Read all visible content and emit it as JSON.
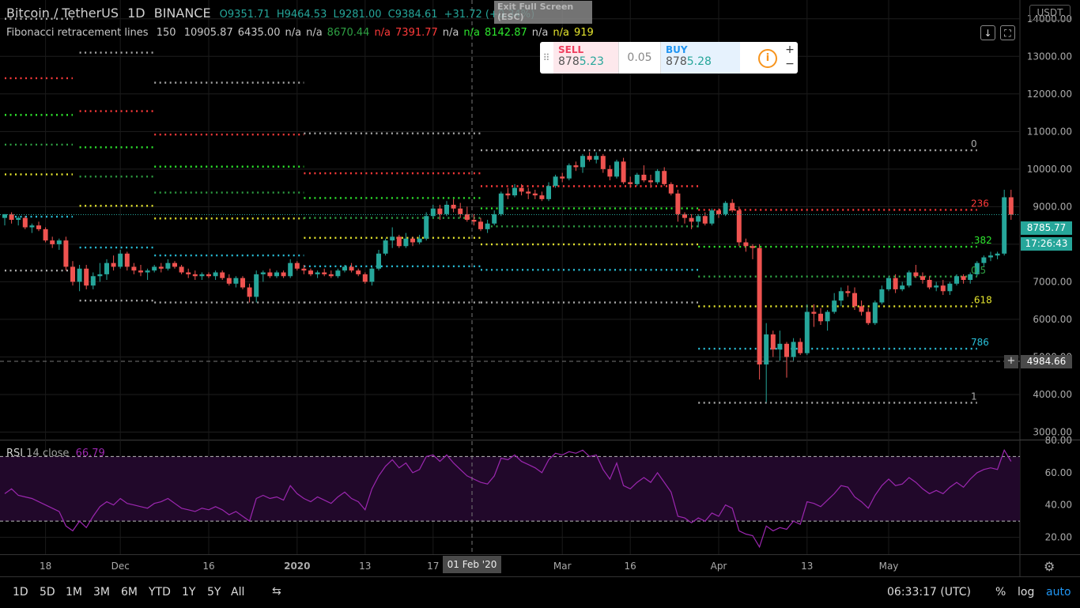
{
  "header": {
    "symbol": "Bitcoin / TetherUS",
    "interval": "1D",
    "exchange": "BINANCE",
    "open": "O9351.71",
    "high": "H9464.53",
    "low": "L9281.00",
    "close": "C9384.61",
    "change": "+31.72 (+0.34%)"
  },
  "exit_fullscreen": {
    "line1": "Exit Full Screen",
    "line2": "(ESC)"
  },
  "fib_legend": {
    "name": "Fibonacci retracement lines",
    "length": "150",
    "values": [
      {
        "text": "10905.87",
        "color": "#c8c8c8"
      },
      {
        "text": "6435.00",
        "color": "#c8c8c8"
      },
      {
        "text": "n/a",
        "color": "#c8c8c8"
      },
      {
        "text": "n/a",
        "color": "#c8c8c8"
      },
      {
        "text": "8670.44",
        "color": "#2ea043"
      },
      {
        "text": "n/a",
        "color": "#ff3a3a"
      },
      {
        "text": "7391.77",
        "color": "#ff3a3a"
      },
      {
        "text": "n/a",
        "color": "#c8c8c8"
      },
      {
        "text": "n/a",
        "color": "#2ee62e"
      },
      {
        "text": "8142.87",
        "color": "#2ee62e"
      },
      {
        "text": "n/a",
        "color": "#c8c8c8"
      },
      {
        "text": "n/a",
        "color": "#e6e62e"
      },
      {
        "text": "919",
        "color": "#e6e62e"
      }
    ]
  },
  "trade_panel": {
    "sell_label": "SELL",
    "sell_price_a": "878",
    "sell_price_b": "5.23",
    "quantity": "0.05",
    "buy_label": "BUY",
    "buy_price_a": "878",
    "buy_price_b": "5.28",
    "info_icon": "i",
    "plus": "+",
    "minus": "−"
  },
  "currency_badge": "USDT",
  "price_axis": {
    "ticks": [
      "14000.00",
      "13000.00",
      "12000.00",
      "11000.00",
      "10000.00",
      "9000.00",
      "8000.00",
      "7000.00",
      "6000.00",
      "5000.00",
      "4000.00",
      "3000.00"
    ],
    "last_price": "8785.77",
    "countdown": "17:26:43",
    "crosshair_price": "4984.66"
  },
  "rsi": {
    "label": "RSI",
    "params": "14 close",
    "value": "66.79",
    "ticks": [
      "80.00",
      "60.00",
      "40.00",
      "20.00"
    ]
  },
  "time_axis": {
    "labels": [
      "18",
      "Dec",
      "16",
      "2020",
      "13",
      "17",
      "Mar",
      "16",
      "Apr",
      "13",
      "May"
    ],
    "crosshair_date": "01 Feb '20"
  },
  "fib_levels": {
    "labels": [
      "0",
      "236",
      ".382",
      "0.5",
      ".618",
      "786",
      "1"
    ],
    "colors": [
      "#aaaaaa",
      "#ff3a3a",
      "#2ee62e",
      "#2ea043",
      "#e6e62e",
      "#29c0d9",
      "#aaaaaa"
    ]
  },
  "bottom_bar": {
    "timeframes": [
      "1D",
      "5D",
      "1M",
      "3M",
      "6M",
      "YTD",
      "1Y",
      "5Y",
      "All"
    ],
    "clock": "06:33:17 (UTC)",
    "percent": "%",
    "log": "log",
    "auto": "auto"
  },
  "colors": {
    "up": "#26a69a",
    "down": "#ef5350",
    "rsi_line": "#9c27b0",
    "rsi_band": "#21082a"
  },
  "chart_data": {
    "type": "candlestick",
    "title": "Bitcoin / TetherUS 1D BINANCE",
    "y_range": [
      2800,
      14500
    ],
    "rsi_range": [
      10,
      80
    ],
    "rsi_bands": [
      30,
      70
    ],
    "candles": [
      [
        8700,
        8800,
        8500,
        8800
      ],
      [
        8800,
        8850,
        8550,
        8650
      ],
      [
        8650,
        8750,
        8500,
        8700
      ],
      [
        8700,
        8750,
        8400,
        8450
      ],
      [
        8450,
        8550,
        8300,
        8500
      ],
      [
        8500,
        8600,
        8350,
        8400
      ],
      [
        8400,
        8450,
        8050,
        8100
      ],
      [
        8100,
        8200,
        7900,
        8000
      ],
      [
        8000,
        8150,
        7850,
        8100
      ],
      [
        8100,
        8200,
        7300,
        7400
      ],
      [
        7400,
        7550,
        6900,
        7000
      ],
      [
        7000,
        7450,
        6750,
        7350
      ],
      [
        7350,
        7450,
        6800,
        6900
      ],
      [
        6900,
        7250,
        6800,
        7150
      ],
      [
        7150,
        7500,
        7000,
        7200
      ],
      [
        7200,
        7600,
        7050,
        7500
      ],
      [
        7500,
        7700,
        7300,
        7400
      ],
      [
        7400,
        7850,
        7350,
        7750
      ],
      [
        7750,
        7800,
        7300,
        7400
      ],
      [
        7400,
        7500,
        7200,
        7300
      ],
      [
        7300,
        7450,
        7150,
        7250
      ],
      [
        7250,
        7350,
        7050,
        7300
      ],
      [
        7300,
        7450,
        7250,
        7400
      ],
      [
        7400,
        7500,
        7250,
        7350
      ],
      [
        7350,
        7600,
        7300,
        7500
      ],
      [
        7500,
        7550,
        7350,
        7400
      ],
      [
        7400,
        7450,
        7200,
        7250
      ],
      [
        7250,
        7350,
        7100,
        7200
      ],
      [
        7200,
        7300,
        7050,
        7150
      ],
      [
        7150,
        7250,
        7050,
        7200
      ],
      [
        7200,
        7250,
        7100,
        7150
      ],
      [
        7150,
        7300,
        7050,
        7250
      ],
      [
        7250,
        7300,
        7050,
        7100
      ],
      [
        7100,
        7200,
        6900,
        6950
      ],
      [
        6950,
        7150,
        6850,
        7100
      ],
      [
        7100,
        7150,
        6800,
        6850
      ],
      [
        6850,
        6950,
        6450,
        6600
      ],
      [
        6600,
        7300,
        6450,
        7200
      ],
      [
        7200,
        7300,
        7000,
        7250
      ],
      [
        7250,
        7350,
        7100,
        7150
      ],
      [
        7150,
        7300,
        7100,
        7250
      ],
      [
        7250,
        7300,
        7100,
        7150
      ],
      [
        7150,
        7600,
        7100,
        7500
      ],
      [
        7500,
        7550,
        7300,
        7350
      ],
      [
        7350,
        7450,
        7200,
        7300
      ],
      [
        7300,
        7350,
        7150,
        7200
      ],
      [
        7200,
        7300,
        7100,
        7250
      ],
      [
        7250,
        7350,
        7150,
        7200
      ],
      [
        7200,
        7300,
        7100,
        7150
      ],
      [
        7150,
        7350,
        7100,
        7300
      ],
      [
        7300,
        7450,
        7250,
        7400
      ],
      [
        7400,
        7500,
        7250,
        7300
      ],
      [
        7300,
        7350,
        7150,
        7200
      ],
      [
        7200,
        7250,
        6950,
        7000
      ],
      [
        7000,
        7400,
        6900,
        7350
      ],
      [
        7350,
        7850,
        7300,
        7750
      ],
      [
        7750,
        8150,
        7700,
        8100
      ],
      [
        8100,
        8450,
        7900,
        8200
      ],
      [
        8200,
        8250,
        7900,
        7950
      ],
      [
        7950,
        8300,
        7900,
        8150
      ],
      [
        8150,
        8200,
        7950,
        8050
      ],
      [
        8050,
        8250,
        8000,
        8150
      ],
      [
        8150,
        8850,
        8100,
        8750
      ],
      [
        8750,
        9050,
        8700,
        8950
      ],
      [
        8950,
        9050,
        8650,
        8800
      ],
      [
        8800,
        9150,
        8750,
        9050
      ],
      [
        9050,
        9200,
        8850,
        8950
      ],
      [
        8950,
        9100,
        8700,
        8800
      ],
      [
        8800,
        9000,
        8600,
        8650
      ],
      [
        8650,
        8800,
        8500,
        8600
      ],
      [
        8600,
        8700,
        8350,
        8400
      ],
      [
        8400,
        8650,
        8300,
        8550
      ],
      [
        8550,
        8900,
        8500,
        8800
      ],
      [
        8800,
        9400,
        8750,
        9350
      ],
      [
        9350,
        9500,
        9200,
        9300
      ],
      [
        9300,
        9600,
        9250,
        9500
      ],
      [
        9500,
        9600,
        9300,
        9400
      ],
      [
        9400,
        9500,
        9200,
        9350
      ],
      [
        9350,
        9450,
        9200,
        9300
      ],
      [
        9300,
        9400,
        9150,
        9200
      ],
      [
        9200,
        9650,
        9150,
        9550
      ],
      [
        9550,
        9850,
        9500,
        9800
      ],
      [
        9800,
        9900,
        9650,
        9750
      ],
      [
        9750,
        10150,
        9700,
        10100
      ],
      [
        10100,
        10200,
        9950,
        10050
      ],
      [
        10050,
        10400,
        9900,
        10350
      ],
      [
        10350,
        10450,
        10200,
        10250
      ],
      [
        10250,
        10450,
        10150,
        10350
      ],
      [
        10350,
        10400,
        9900,
        10000
      ],
      [
        10000,
        10100,
        9700,
        9800
      ],
      [
        9800,
        10250,
        9750,
        10200
      ],
      [
        10200,
        10300,
        9600,
        9650
      ],
      [
        9650,
        9800,
        9500,
        9600
      ],
      [
        9600,
        9900,
        9550,
        9850
      ],
      [
        9850,
        10100,
        9650,
        9700
      ],
      [
        9700,
        9850,
        9500,
        9650
      ],
      [
        9650,
        10000,
        9600,
        9950
      ],
      [
        9950,
        10050,
        9550,
        9600
      ],
      [
        9600,
        9650,
        9300,
        9350
      ],
      [
        9350,
        9450,
        8600,
        8800
      ],
      [
        8800,
        8850,
        8550,
        8700
      ],
      [
        8700,
        8800,
        8400,
        8600
      ],
      [
        8600,
        8800,
        8450,
        8750
      ],
      [
        8750,
        8850,
        8500,
        8550
      ],
      [
        8550,
        8950,
        8500,
        8900
      ],
      [
        8900,
        8950,
        8700,
        8800
      ],
      [
        8800,
        9150,
        8750,
        9100
      ],
      [
        9100,
        9200,
        8850,
        8900
      ],
      [
        8900,
        9000,
        7950,
        8050
      ],
      [
        8050,
        8150,
        7800,
        7950
      ],
      [
        7950,
        8000,
        7600,
        7900
      ],
      [
        7900,
        8000,
        4400,
        4800
      ],
      [
        4800,
        5900,
        3800,
        5600
      ],
      [
        5600,
        5700,
        5000,
        5200
      ],
      [
        5200,
        5700,
        4900,
        5350
      ],
      [
        5350,
        5400,
        4450,
        5000
      ],
      [
        5000,
        5500,
        4900,
        5400
      ],
      [
        5400,
        5500,
        5050,
        5100
      ],
      [
        5100,
        6400,
        5050,
        6200
      ],
      [
        6200,
        6400,
        5800,
        6150
      ],
      [
        6150,
        6300,
        5850,
        5950
      ],
      [
        5950,
        6250,
        5700,
        6200
      ],
      [
        6200,
        6700,
        6150,
        6500
      ],
      [
        6500,
        6850,
        6350,
        6750
      ],
      [
        6750,
        6900,
        6600,
        6700
      ],
      [
        6700,
        6850,
        6250,
        6350
      ],
      [
        6350,
        6500,
        6100,
        6200
      ],
      [
        6200,
        6300,
        5850,
        5900
      ],
      [
        5900,
        6500,
        5850,
        6450
      ],
      [
        6450,
        6900,
        6400,
        6800
      ],
      [
        6800,
        7150,
        6750,
        7100
      ],
      [
        7100,
        7200,
        6700,
        6800
      ],
      [
        6800,
        7000,
        6750,
        6900
      ],
      [
        6900,
        7300,
        6850,
        7250
      ],
      [
        7250,
        7450,
        7100,
        7150
      ],
      [
        7150,
        7250,
        6950,
        7050
      ],
      [
        7050,
        7150,
        6800,
        6850
      ],
      [
        6850,
        7000,
        6750,
        6900
      ],
      [
        6900,
        7050,
        6650,
        6750
      ],
      [
        6750,
        7000,
        6650,
        6950
      ],
      [
        6950,
        7200,
        6900,
        7150
      ],
      [
        7150,
        7200,
        6950,
        7050
      ],
      [
        7050,
        7250,
        6950,
        7200
      ],
      [
        7200,
        7550,
        7150,
        7500
      ],
      [
        7500,
        7700,
        7400,
        7650
      ],
      [
        7650,
        7800,
        7550,
        7700
      ],
      [
        7700,
        7800,
        7600,
        7750
      ],
      [
        7750,
        9450,
        7700,
        9250
      ],
      [
        9250,
        9450,
        8650,
        8785.77
      ]
    ],
    "rsi": [
      47,
      50,
      46,
      45,
      44,
      42,
      40,
      38,
      36,
      27,
      24,
      30,
      26,
      33,
      39,
      42,
      40,
      44,
      41,
      40,
      39,
      38,
      41,
      42,
      44,
      41,
      38,
      37,
      36,
      38,
      37,
      39,
      37,
      34,
      36,
      33,
      30,
      44,
      46,
      44,
      45,
      43,
      52,
      47,
      44,
      42,
      45,
      43,
      41,
      45,
      48,
      44,
      42,
      37,
      50,
      58,
      64,
      68,
      63,
      66,
      60,
      62,
      70,
      71,
      67,
      71,
      66,
      62,
      58,
      56,
      54,
      53,
      58,
      69,
      68,
      71,
      67,
      65,
      63,
      60,
      68,
      72,
      71,
      73,
      72,
      74,
      70,
      71,
      62,
      56,
      66,
      52,
      50,
      54,
      57,
      54,
      60,
      54,
      48,
      33,
      32,
      29,
      32,
      30,
      35,
      33,
      40,
      38,
      24,
      22,
      21,
      14,
      27,
      24,
      26,
      25,
      30,
      28,
      42,
      41,
      39,
      43,
      47,
      52,
      51,
      45,
      42,
      38,
      46,
      52,
      56,
      52,
      53,
      57,
      54,
      50,
      47,
      49,
      47,
      51,
      54,
      51,
      56,
      60,
      62,
      63,
      62,
      74,
      67
    ]
  }
}
